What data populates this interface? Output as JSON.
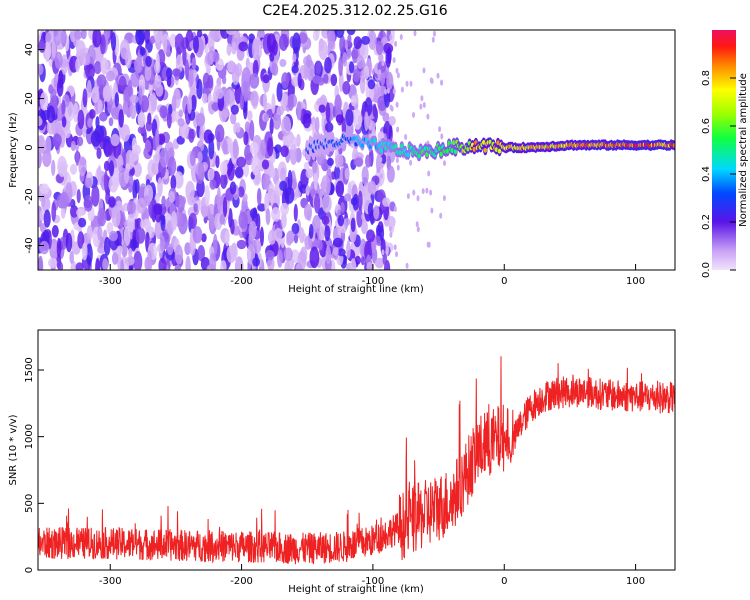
{
  "title": "C2E4.2025.312.02.25.G16",
  "colors": {
    "snr_line": "#ee2222",
    "spectrum_core": "#e01060",
    "background": "#ffffff"
  },
  "chart_data": [
    {
      "type": "heatmap",
      "name": "spectrogram",
      "xlabel": "Height of straight line (km)",
      "ylabel": "Frequency (Hz)",
      "xlim": [
        -355,
        130
      ],
      "ylim": [
        -50,
        48
      ],
      "xticks": [
        -300,
        -200,
        -100,
        0,
        100
      ],
      "yticks": [
        -40,
        -20,
        0,
        20,
        40
      ],
      "noise_region_end_km": -95,
      "signal_ridge": {
        "description": "narrow high-amplitude line near 0 Hz",
        "x": [
          -150,
          -120,
          -100,
          -80,
          -60,
          -40,
          -20,
          0,
          20,
          50,
          80,
          100,
          130
        ],
        "freq_hz": [
          0,
          3,
          1,
          -1,
          -2,
          0,
          1,
          0,
          0,
          1,
          1,
          1,
          1
        ],
        "amplitude": [
          0.3,
          0.35,
          0.45,
          0.5,
          0.55,
          0.6,
          0.85,
          0.8,
          0.8,
          0.85,
          0.9,
          0.95,
          0.9
        ]
      },
      "colorbar": {
        "label": "Normalized spectral amplitude",
        "range": [
          0,
          1
        ],
        "ticks": [
          0.0,
          0.2,
          0.4,
          0.6,
          0.8
        ]
      }
    },
    {
      "type": "line",
      "name": "snr",
      "xlabel": "Height of straight line (km)",
      "ylabel": "SNR (10 * v/v)",
      "xlim": [
        -355,
        130
      ],
      "ylim": [
        0,
        1800
      ],
      "xticks": [
        -300,
        -200,
        -100,
        0,
        100
      ],
      "yticks": [
        0,
        500,
        1000,
        1500
      ],
      "series": [
        {
          "name": "SNR",
          "x": [
            -355,
            -300,
            -250,
            -200,
            -150,
            -120,
            -100,
            -80,
            -60,
            -40,
            -30,
            -20,
            -10,
            0,
            5,
            10,
            20,
            30,
            40,
            60,
            80,
            100,
            130
          ],
          "values": [
            200,
            200,
            185,
            175,
            160,
            175,
            220,
            320,
            420,
            520,
            700,
            900,
            950,
            1000,
            900,
            1050,
            1220,
            1300,
            1330,
            1340,
            1310,
            1300,
            1290
          ]
        }
      ]
    }
  ]
}
